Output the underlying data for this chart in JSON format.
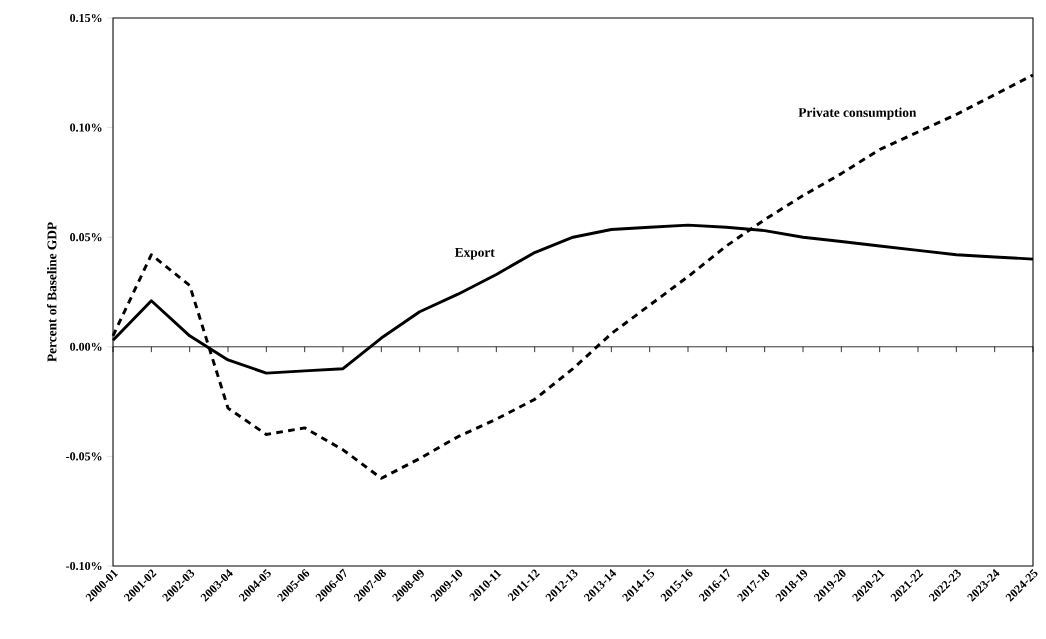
{
  "chart_data": {
    "type": "line",
    "ylabel": "Percent of Baseline GDP",
    "categories": [
      "2000-01",
      "2001-02",
      "2002-03",
      "2003-04",
      "2004-05",
      "2005-06",
      "2006-07",
      "2007-08",
      "2008-09",
      "2009-10",
      "2010-11",
      "2011-12",
      "2012-13",
      "2013-14",
      "2014-15",
      "2015-16",
      "2016-17",
      "2017-18",
      "2018-19",
      "2019-20",
      "2020-21",
      "2021-22",
      "2022-23",
      "2023-24",
      "2024-25"
    ],
    "series": [
      {
        "name": "Export",
        "color": "#000000",
        "line_style": "solid",
        "values": [
          0.003,
          0.021,
          0.005,
          -0.006,
          -0.012,
          -0.011,
          -0.01,
          0.004,
          0.016,
          0.024,
          0.033,
          0.043,
          0.05,
          0.0535,
          0.0545,
          0.0555,
          0.0545,
          0.053,
          0.05,
          0.048,
          0.046,
          0.044,
          0.042,
          0.041,
          0.04
        ]
      },
      {
        "name": "Private consumption",
        "color": "#000000",
        "line_style": "dashed",
        "values": [
          0.005,
          0.042,
          0.028,
          -0.028,
          -0.04,
          -0.037,
          -0.047,
          -0.06,
          -0.051,
          -0.041,
          -0.033,
          -0.024,
          -0.01,
          0.006,
          0.019,
          0.032,
          0.046,
          0.058,
          0.069,
          0.079,
          0.09,
          0.098,
          0.106,
          0.115,
          0.124
        ]
      }
    ],
    "ylim": [
      -0.1,
      0.15
    ],
    "yticks": [
      {
        "value": -0.1,
        "label": "-0.10%"
      },
      {
        "value": -0.05,
        "label": "-0.05%"
      },
      {
        "value": 0,
        "label": "0.00%"
      },
      {
        "value": 0.05,
        "label": "0.05%"
      },
      {
        "value": 0.1,
        "label": "0.10%"
      },
      {
        "value": 0.15,
        "label": "0.15%"
      }
    ],
    "legend": false,
    "marker": "none"
  }
}
